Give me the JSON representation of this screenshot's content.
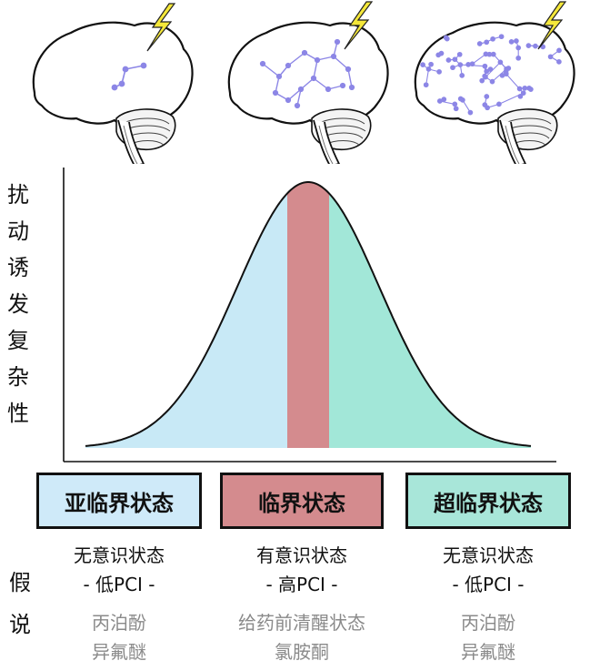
{
  "colors": {
    "sub": "#cfeaf9",
    "sub_curve": "#c8e9f6",
    "critical": "#d48b8e",
    "super": "#a8e6d9",
    "super_curve": "#a2e7d8",
    "node": "#8c86e6",
    "bolt": "#f5e83a"
  },
  "y_axis_label": [
    "扰",
    "动",
    "诱",
    "发",
    "复",
    "杂",
    "性"
  ],
  "hypothesis_label": [
    "假",
    "说"
  ],
  "columns": [
    {
      "state": "亚临界状态",
      "consciousness": "无意识状态",
      "pci": "- 低PCI -",
      "drugs": [
        "丙泊酚",
        "异氟醚"
      ]
    },
    {
      "state": "临界状态",
      "consciousness": "有意识状态",
      "pci": "- 高PCI -",
      "drugs": [
        "给药前清醒状态",
        "氯胺酮"
      ]
    },
    {
      "state": "超临界状态",
      "consciousness": "无意识状态",
      "pci": "- 低PCI -",
      "drugs": [
        "丙泊酚",
        "异氟醚"
      ]
    }
  ]
}
